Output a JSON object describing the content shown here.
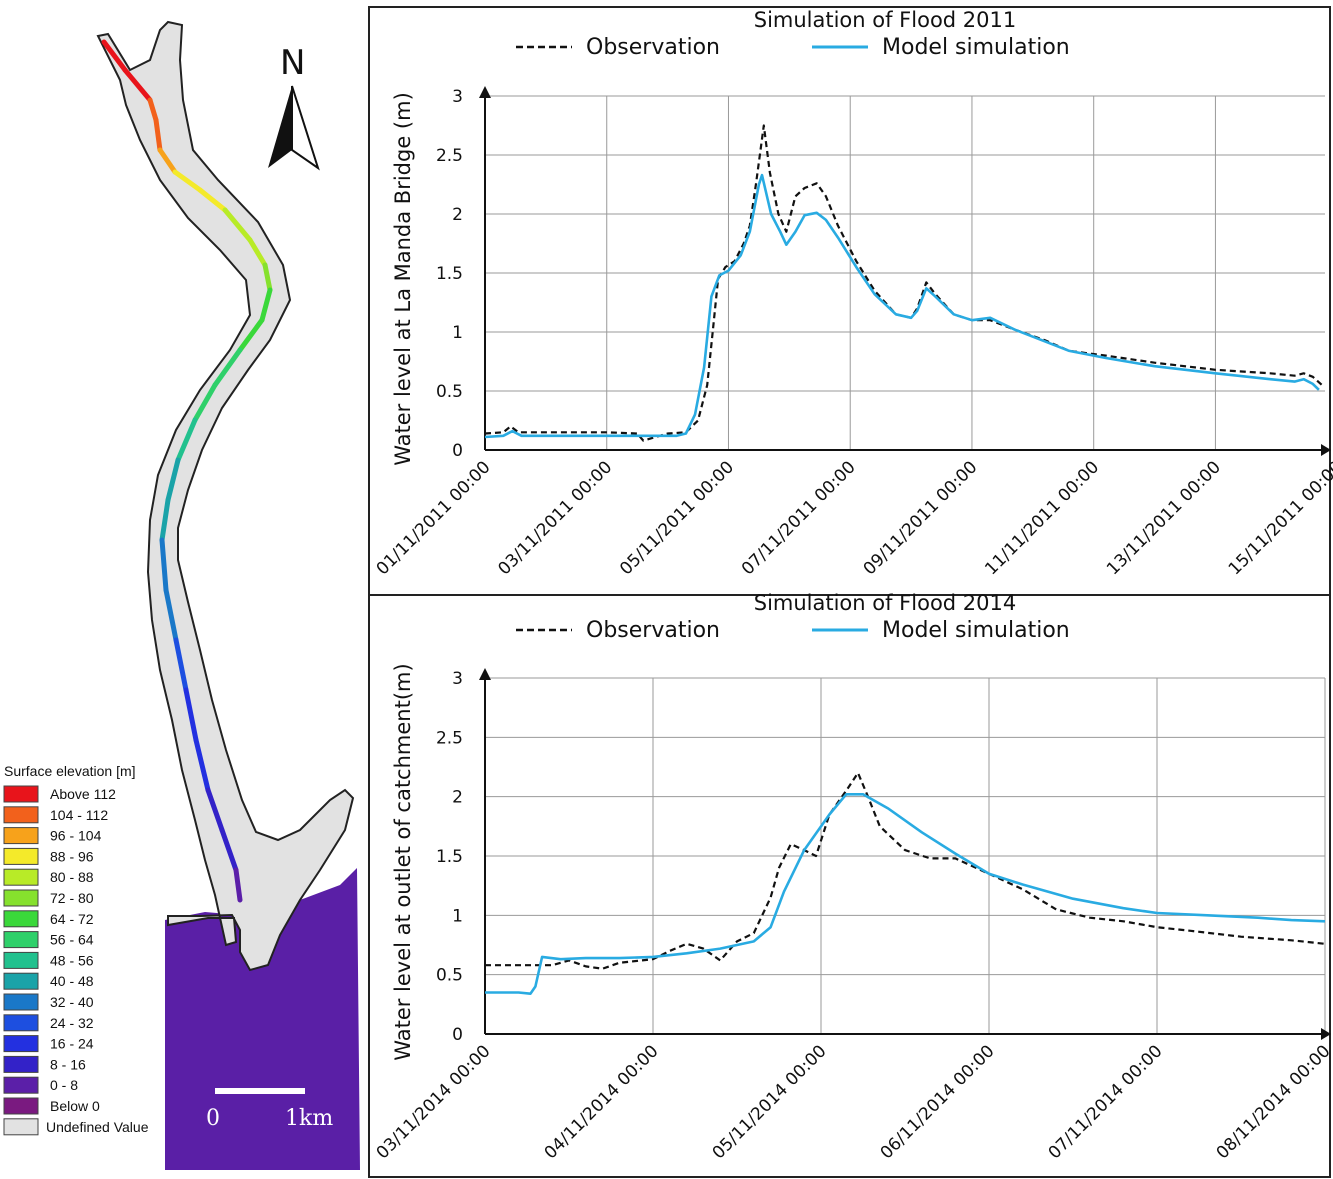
{
  "map": {
    "north_label": "N",
    "scale_start": "0",
    "scale_end": "1km",
    "legend_title": "Surface elevation [m]",
    "legend_items": [
      {
        "label": "Above 112",
        "color": "#e8141b"
      },
      {
        "label": "104 - 112",
        "color": "#f2611c"
      },
      {
        "label": "96 - 104",
        "color": "#f7a21b"
      },
      {
        "label": "88 -   96",
        "color": "#f4ea2a"
      },
      {
        "label": "80 -   88",
        "color": "#b8eb27"
      },
      {
        "label": "72 -   80",
        "color": "#86e12d"
      },
      {
        "label": "64 -   72",
        "color": "#3ad83a"
      },
      {
        "label": "56 -   64",
        "color": "#2fd06a"
      },
      {
        "label": "48 -   56",
        "color": "#22c18e"
      },
      {
        "label": "40 -   48",
        "color": "#1aa3a8"
      },
      {
        "label": "32 -   40",
        "color": "#1a78c8"
      },
      {
        "label": "24 -   32",
        "color": "#1d4fe0"
      },
      {
        "label": "16 -   24",
        "color": "#2330e0"
      },
      {
        "label": "8 -   16",
        "color": "#3322c8"
      },
      {
        "label": "0 -     8",
        "color": "#5b1fa8"
      },
      {
        "label": "Below     0",
        "color": "#7a1a80"
      },
      {
        "label": "Undefined Value",
        "color": "#e2e2e2"
      }
    ],
    "colors": {
      "valley": "#e2e2e2",
      "sea": "#5a1fa6"
    }
  },
  "chart_data": [
    {
      "type": "line",
      "title": "Simulation of Flood 2011",
      "xlabel": "",
      "ylabel": "Water level at La Manda Bridge (m)",
      "ylim": [
        0,
        3
      ],
      "yticks": [
        "0",
        "0.5",
        "1",
        "1.5",
        "2",
        "2.5",
        "3"
      ],
      "xlim": [
        0,
        13.8
      ],
      "xticks": [
        "01/11/2011 00:00",
        "03/11/2011 00:00",
        "05/11/2011 00:00",
        "07/11/2011 00:00",
        "09/11/2011 00:00",
        "11/11/2011 00:00",
        "13/11/2011 00:00",
        "15/11/2011 00:00"
      ],
      "xtick_days": [
        0,
        2,
        4,
        6,
        8,
        10,
        12,
        14
      ],
      "grid": true,
      "legend_position": "top",
      "series": [
        {
          "name": "Observation",
          "style": "dashed",
          "color": "#111111",
          "points": [
            [
              0,
              0.14
            ],
            [
              0.3,
              0.15
            ],
            [
              0.42,
              0.2
            ],
            [
              0.55,
              0.15
            ],
            [
              1,
              0.15
            ],
            [
              2,
              0.15
            ],
            [
              2.5,
              0.14
            ],
            [
              2.6,
              0.08
            ],
            [
              3,
              0.14
            ],
            [
              3.3,
              0.15
            ],
            [
              3.5,
              0.25
            ],
            [
              3.65,
              0.55
            ],
            [
              3.75,
              1.05
            ],
            [
              3.83,
              1.45
            ],
            [
              3.95,
              1.55
            ],
            [
              4.1,
              1.6
            ],
            [
              4.25,
              1.75
            ],
            [
              4.35,
              1.9
            ],
            [
              4.45,
              2.25
            ],
            [
              4.58,
              2.75
            ],
            [
              4.68,
              2.35
            ],
            [
              4.82,
              2.0
            ],
            [
              4.95,
              1.85
            ],
            [
              5.1,
              2.15
            ],
            [
              5.25,
              2.22
            ],
            [
              5.45,
              2.26
            ],
            [
              5.6,
              2.15
            ],
            [
              5.8,
              1.9
            ],
            [
              6.1,
              1.6
            ],
            [
              6.4,
              1.35
            ],
            [
              6.75,
              1.15
            ],
            [
              7.0,
              1.12
            ],
            [
              7.1,
              1.2
            ],
            [
              7.25,
              1.42
            ],
            [
              7.4,
              1.32
            ],
            [
              7.7,
              1.15
            ],
            [
              8.0,
              1.1
            ],
            [
              8.3,
              1.1
            ],
            [
              8.7,
              1.02
            ],
            [
              9.2,
              0.93
            ],
            [
              9.6,
              0.84
            ],
            [
              10.2,
              0.8
            ],
            [
              11.0,
              0.74
            ],
            [
              12.0,
              0.68
            ],
            [
              12.9,
              0.65
            ],
            [
              13.3,
              0.63
            ],
            [
              13.45,
              0.65
            ],
            [
              13.6,
              0.62
            ],
            [
              13.75,
              0.55
            ]
          ]
        },
        {
          "name": "Model simulation",
          "style": "solid",
          "color": "#29abe2",
          "points": [
            [
              0,
              0.11
            ],
            [
              0.3,
              0.12
            ],
            [
              0.45,
              0.16
            ],
            [
              0.6,
              0.12
            ],
            [
              1,
              0.12
            ],
            [
              2,
              0.12
            ],
            [
              3,
              0.12
            ],
            [
              3.15,
              0.12
            ],
            [
              3.3,
              0.14
            ],
            [
              3.45,
              0.3
            ],
            [
              3.6,
              0.7
            ],
            [
              3.72,
              1.3
            ],
            [
              3.85,
              1.48
            ],
            [
              4.0,
              1.52
            ],
            [
              4.2,
              1.65
            ],
            [
              4.35,
              1.85
            ],
            [
              4.5,
              2.25
            ],
            [
              4.55,
              2.33
            ],
            [
              4.7,
              2.0
            ],
            [
              4.85,
              1.85
            ],
            [
              4.95,
              1.74
            ],
            [
              5.1,
              1.85
            ],
            [
              5.25,
              1.99
            ],
            [
              5.45,
              2.01
            ],
            [
              5.6,
              1.95
            ],
            [
              5.8,
              1.8
            ],
            [
              6.1,
              1.55
            ],
            [
              6.4,
              1.32
            ],
            [
              6.75,
              1.15
            ],
            [
              7.0,
              1.12
            ],
            [
              7.1,
              1.18
            ],
            [
              7.25,
              1.37
            ],
            [
              7.4,
              1.3
            ],
            [
              7.7,
              1.15
            ],
            [
              8.0,
              1.1
            ],
            [
              8.3,
              1.12
            ],
            [
              8.7,
              1.02
            ],
            [
              9.2,
              0.92
            ],
            [
              9.6,
              0.84
            ],
            [
              10.2,
              0.78
            ],
            [
              11.0,
              0.71
            ],
            [
              12.0,
              0.65
            ],
            [
              12.9,
              0.6
            ],
            [
              13.3,
              0.58
            ],
            [
              13.45,
              0.6
            ],
            [
              13.6,
              0.56
            ],
            [
              13.7,
              0.51
            ]
          ]
        }
      ]
    },
    {
      "type": "line",
      "title": "Simulation of Flood 2014",
      "xlabel": "",
      "ylabel": "Water level at outlet of catchment(m)",
      "ylim": [
        0,
        3
      ],
      "yticks": [
        "0",
        "0.5",
        "1",
        "1.5",
        "2",
        "2.5",
        "3"
      ],
      "xlim": [
        0,
        5
      ],
      "xticks": [
        "03/11/2014 00:00",
        "04/11/2014 00:00",
        "05/11/2014 00:00",
        "06/11/2014 00:00",
        "07/11/2014 00:00",
        "08/11/2014 00:00"
      ],
      "xtick_days": [
        0,
        1,
        2,
        3,
        4,
        5
      ],
      "grid": true,
      "legend_position": "top",
      "series": [
        {
          "name": "Observation",
          "style": "dashed",
          "color": "#111111",
          "points": [
            [
              0,
              0.58
            ],
            [
              0.2,
              0.58
            ],
            [
              0.4,
              0.58
            ],
            [
              0.5,
              0.62
            ],
            [
              0.6,
              0.57
            ],
            [
              0.7,
              0.55
            ],
            [
              0.8,
              0.6
            ],
            [
              1.0,
              0.63
            ],
            [
              1.1,
              0.7
            ],
            [
              1.2,
              0.76
            ],
            [
              1.3,
              0.72
            ],
            [
              1.4,
              0.62
            ],
            [
              1.5,
              0.78
            ],
            [
              1.6,
              0.85
            ],
            [
              1.7,
              1.15
            ],
            [
              1.75,
              1.4
            ],
            [
              1.82,
              1.6
            ],
            [
              1.9,
              1.55
            ],
            [
              1.97,
              1.5
            ],
            [
              2.05,
              1.85
            ],
            [
              2.15,
              2.05
            ],
            [
              2.22,
              2.2
            ],
            [
              2.28,
              2.0
            ],
            [
              2.35,
              1.75
            ],
            [
              2.5,
              1.55
            ],
            [
              2.65,
              1.48
            ],
            [
              2.8,
              1.48
            ],
            [
              3.0,
              1.35
            ],
            [
              3.2,
              1.22
            ],
            [
              3.4,
              1.05
            ],
            [
              3.6,
              0.98
            ],
            [
              3.8,
              0.95
            ],
            [
              4.0,
              0.9
            ],
            [
              4.2,
              0.87
            ],
            [
              4.5,
              0.82
            ],
            [
              4.8,
              0.79
            ],
            [
              5.0,
              0.76
            ]
          ]
        },
        {
          "name": "Model simulation",
          "style": "solid",
          "color": "#29abe2",
          "points": [
            [
              0,
              0.35
            ],
            [
              0.2,
              0.35
            ],
            [
              0.27,
              0.34
            ],
            [
              0.3,
              0.4
            ],
            [
              0.34,
              0.65
            ],
            [
              0.45,
              0.63
            ],
            [
              0.6,
              0.64
            ],
            [
              0.8,
              0.64
            ],
            [
              1.0,
              0.65
            ],
            [
              1.2,
              0.68
            ],
            [
              1.4,
              0.72
            ],
            [
              1.6,
              0.78
            ],
            [
              1.7,
              0.9
            ],
            [
              1.78,
              1.2
            ],
            [
              1.9,
              1.55
            ],
            [
              2.05,
              1.85
            ],
            [
              2.15,
              2.02
            ],
            [
              2.25,
              2.02
            ],
            [
              2.4,
              1.9
            ],
            [
              2.6,
              1.7
            ],
            [
              2.8,
              1.52
            ],
            [
              3.0,
              1.35
            ],
            [
              3.2,
              1.26
            ],
            [
              3.5,
              1.14
            ],
            [
              3.8,
              1.06
            ],
            [
              4.0,
              1.02
            ],
            [
              4.3,
              1.0
            ],
            [
              4.6,
              0.98
            ],
            [
              4.8,
              0.96
            ],
            [
              5.0,
              0.95
            ]
          ]
        }
      ]
    }
  ]
}
